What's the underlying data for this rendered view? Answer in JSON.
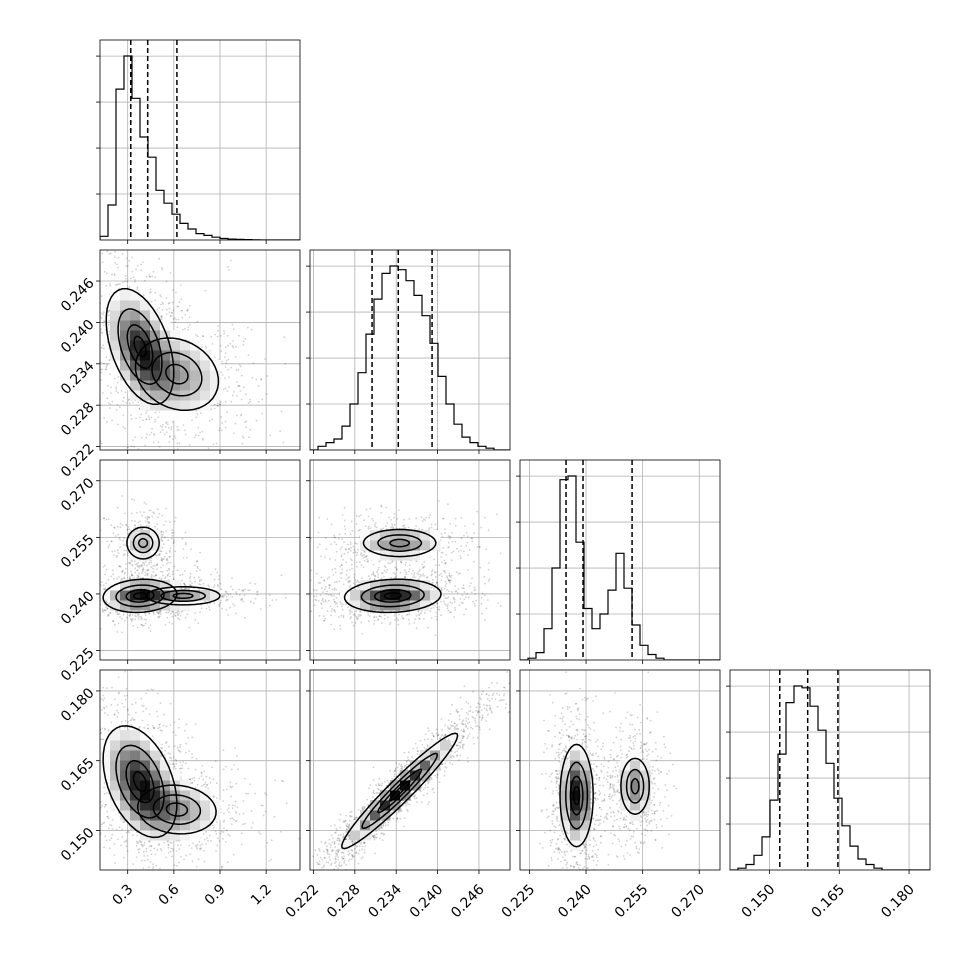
{
  "chart_data": {
    "type": "corner",
    "parameters": [
      {
        "range": [
          0.12,
          1.42
        ],
        "ticks": [
          "0.3",
          "0.6",
          "0.9",
          "1.2"
        ],
        "tick_values": [
          0.3,
          0.6,
          0.9,
          1.2
        ],
        "quantiles": [
          0.32,
          0.43,
          0.62
        ],
        "hist_edges_start": 0.12,
        "hist_bin": 0.052,
        "hist": [
          0.02,
          0.19,
          0.82,
          1.0,
          0.77,
          0.56,
          0.45,
          0.27,
          0.2,
          0.14,
          0.09,
          0.06,
          0.035,
          0.025,
          0.015,
          0.008,
          0.005,
          0.003,
          0.002,
          0.001,
          0.0,
          0.0,
          0.0,
          0.0,
          0.0
        ]
      },
      {
        "range": [
          0.2215,
          0.2505
        ],
        "ticks": [
          "0.222",
          "0.228",
          "0.234",
          "0.240",
          "0.246"
        ],
        "tick_values": [
          0.222,
          0.228,
          0.234,
          0.24,
          0.246
        ],
        "quantiles": [
          0.2305,
          0.2343,
          0.2392
        ],
        "hist_edges_start": 0.2215,
        "hist_bin": 0.00116,
        "hist": [
          0.0,
          0.02,
          0.04,
          0.06,
          0.13,
          0.25,
          0.42,
          0.63,
          0.82,
          0.96,
          1.0,
          0.98,
          0.92,
          0.84,
          0.73,
          0.58,
          0.4,
          0.25,
          0.14,
          0.07,
          0.04,
          0.02,
          0.01,
          0.0,
          0.0
        ]
      },
      {
        "range": [
          0.2225,
          0.2755
        ],
        "ticks": [
          "0.225",
          "0.240",
          "0.255",
          "0.270"
        ],
        "tick_values": [
          0.225,
          0.24,
          0.255,
          0.27
        ],
        "quantiles": [
          0.2347,
          0.2392,
          0.2522
        ],
        "hist_edges_start": 0.2225,
        "hist_bin": 0.00212,
        "hist": [
          0.0,
          0.01,
          0.04,
          0.17,
          0.5,
          0.98,
          1.0,
          0.64,
          0.28,
          0.17,
          0.25,
          0.38,
          0.58,
          0.39,
          0.19,
          0.08,
          0.03,
          0.01,
          0.0,
          0.0,
          0.0,
          0.0,
          0.0,
          0.0,
          0.0
        ]
      },
      {
        "range": [
          0.1415,
          0.1845
        ],
        "ticks": [
          "0.150",
          "0.165",
          "0.180"
        ],
        "tick_values": [
          0.15,
          0.165,
          0.18
        ],
        "quantiles": [
          0.1522,
          0.1582,
          0.1647
        ],
        "hist_edges_start": 0.1415,
        "hist_bin": 0.00172,
        "hist": [
          0.0,
          0.01,
          0.03,
          0.08,
          0.18,
          0.38,
          0.63,
          0.91,
          1.0,
          0.99,
          0.89,
          0.76,
          0.58,
          0.39,
          0.24,
          0.13,
          0.06,
          0.03,
          0.01,
          0.0,
          0.0,
          0.0,
          0.0,
          0.0,
          0.0
        ]
      }
    ],
    "correlations": {
      "1-0": {
        "modes": [
          {
            "x": 0.38,
            "y": 0.2365,
            "sx": 0.11,
            "sy": 0.0042,
            "rho": -0.45,
            "w": 1.0
          },
          {
            "x": 0.62,
            "y": 0.2325,
            "sx": 0.18,
            "sy": 0.0035,
            "rho": -0.2,
            "w": 0.55
          }
        ]
      },
      "2-0": {
        "modes": [
          {
            "x": 0.38,
            "y": 0.2395,
            "sx": 0.12,
            "sy": 0.0022,
            "rho": 0.1,
            "w": 1.0
          },
          {
            "x": 0.66,
            "y": 0.2395,
            "sx": 0.16,
            "sy": 0.0016,
            "rho": 0.0,
            "w": 0.5
          },
          {
            "x": 0.4,
            "y": 0.2535,
            "sx": 0.07,
            "sy": 0.0028,
            "rho": 0.0,
            "w": 0.45
          }
        ]
      },
      "2-1": {
        "modes": [
          {
            "x": 0.2335,
            "y": 0.2395,
            "sx": 0.0035,
            "sy": 0.0022,
            "rho": 0.1,
            "w": 1.0
          },
          {
            "x": 0.2345,
            "y": 0.2535,
            "sx": 0.0035,
            "sy": 0.0024,
            "rho": 0.0,
            "w": 0.55
          }
        ]
      },
      "3-0": {
        "modes": [
          {
            "x": 0.38,
            "y": 0.1605,
            "sx": 0.12,
            "sy": 0.006,
            "rho": -0.4,
            "w": 1.0
          },
          {
            "x": 0.62,
            "y": 0.1545,
            "sx": 0.17,
            "sy": 0.0035,
            "rho": -0.1,
            "w": 0.5
          }
        ]
      },
      "3-1": {
        "modes": [
          {
            "x": 0.2345,
            "y": 0.1585,
            "sx": 0.0042,
            "sy": 0.0062,
            "rho": 0.96,
            "w": 1.0
          }
        ]
      },
      "3-2": {
        "modes": [
          {
            "x": 0.2375,
            "y": 0.1575,
            "sx": 0.0022,
            "sy": 0.0055,
            "rho": 0.0,
            "w": 1.0
          },
          {
            "x": 0.253,
            "y": 0.1595,
            "sx": 0.0025,
            "sy": 0.004,
            "rho": 0.0,
            "w": 0.55
          }
        ]
      }
    },
    "contour_levels": [
      0.12,
      0.4,
      0.7,
      0.88
    ],
    "diag_grid_lines": 4
  }
}
